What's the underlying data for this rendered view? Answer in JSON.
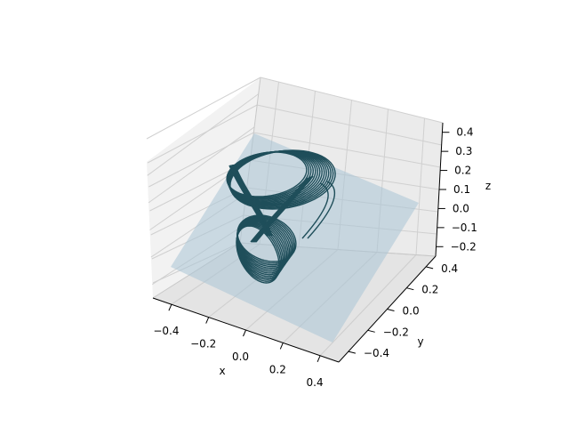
{
  "chart_data": {
    "type": "line",
    "projection": "3d",
    "title": "",
    "xlabel": "x",
    "ylabel": "y",
    "zlabel": "z",
    "xticks": [
      "−0.4",
      "−0.2",
      "0.0",
      "0.2",
      "0.4"
    ],
    "yticks": [
      "−0.4",
      "−0.2",
      "0.0",
      "0.2",
      "0.4"
    ],
    "zticks": [
      "−0.2",
      "−0.1",
      "0.0",
      "0.1",
      "0.2",
      "0.3",
      "0.4"
    ],
    "xlim": [
      -0.5,
      0.5
    ],
    "ylim": [
      -0.5,
      0.5
    ],
    "zlim": [
      -0.25,
      0.45
    ],
    "grid": true,
    "legend": "none",
    "series": [
      {
        "kind": "trajectory",
        "color": "#1f4e5a",
        "description_loops": 14,
        "x_range": [
          -0.25,
          0.35
        ],
        "y_range": [
          -0.3,
          0.3
        ],
        "z_range": [
          -0.15,
          0.35
        ]
      },
      {
        "kind": "plane",
        "color": "#a9c4d6",
        "opacity": 0.55
      }
    ]
  }
}
